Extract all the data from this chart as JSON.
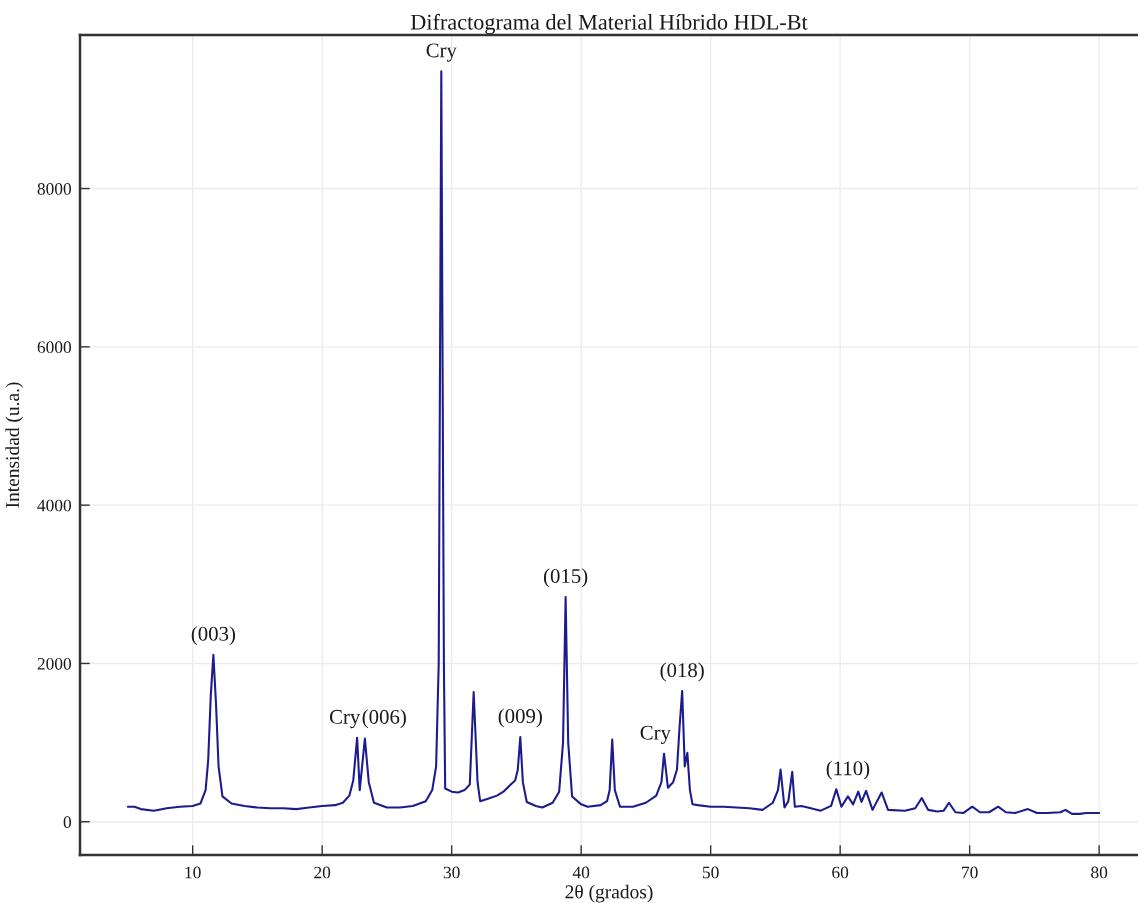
{
  "chart_data": {
    "type": "line",
    "title": "Difractograma del Material Híbrido HDL-Bt",
    "xlabel": "2θ (grados)",
    "ylabel": "Intensidad (u.a.)",
    "series": [
      {
        "color": "#1c1c8c",
        "x": [
          5.0,
          5.5,
          6.0,
          7.0,
          8.0,
          9.0,
          10.0,
          10.6,
          11.0,
          11.2,
          11.4,
          11.6,
          11.8,
          12.0,
          12.3,
          13.0,
          14.0,
          15.0,
          16.0,
          17.0,
          18.0,
          19.0,
          20.0,
          21.0,
          21.6,
          22.1,
          22.4,
          22.7,
          22.9,
          23.3,
          23.6,
          24.0,
          25.0,
          26.0,
          27.0,
          28.0,
          28.5,
          28.8,
          29.0,
          29.2,
          29.4,
          29.5,
          30.0,
          30.5,
          31.0,
          31.4,
          31.7,
          32.0,
          32.2,
          32.8,
          33.5,
          34.0,
          34.5,
          34.9,
          35.1,
          35.3,
          35.5,
          35.8,
          36.5,
          37.0,
          37.8,
          38.3,
          38.6,
          38.8,
          39.0,
          39.3,
          40.0,
          40.5,
          41.5,
          42.0,
          42.2,
          42.4,
          42.6,
          43.0,
          44.0,
          45.0,
          45.8,
          46.2,
          46.4,
          46.7,
          47.1,
          47.4,
          47.6,
          47.8,
          48.0,
          48.2,
          48.4,
          48.6,
          49.0,
          50.0,
          51.0,
          52.0,
          53.0,
          54.0,
          54.8,
          55.2,
          55.4,
          55.7,
          56.0,
          56.3,
          56.5,
          57.0,
          57.5,
          58.5,
          59.3,
          59.7,
          60.1,
          60.6,
          61.0,
          61.4,
          61.65,
          62.0,
          62.5,
          63.2,
          63.7,
          65.0,
          65.8,
          66.3,
          66.8,
          67.5,
          68.0,
          68.4,
          68.9,
          69.5,
          70.2,
          70.8,
          71.5,
          72.2,
          72.8,
          73.5,
          74.5,
          75.2,
          76.0,
          77.0,
          77.4,
          77.9,
          78.5,
          79.0,
          80.0
        ],
        "values": [
          190,
          190,
          160,
          140,
          170,
          190,
          200,
          230,
          400,
          780,
          1600,
          2110,
          1500,
          700,
          320,
          230,
          200,
          180,
          170,
          170,
          160,
          180,
          200,
          210,
          240,
          330,
          520,
          1060,
          400,
          1050,
          500,
          240,
          180,
          180,
          200,
          260,
          400,
          700,
          2000,
          9480,
          2000,
          420,
          380,
          370,
          400,
          470,
          1640,
          500,
          260,
          290,
          330,
          380,
          460,
          520,
          650,
          1070,
          500,
          250,
          200,
          180,
          240,
          380,
          1000,
          2840,
          1000,
          320,
          220,
          190,
          210,
          260,
          400,
          1040,
          400,
          190,
          190,
          240,
          330,
          500,
          860,
          430,
          500,
          660,
          1200,
          1650,
          700,
          870,
          400,
          220,
          210,
          190,
          190,
          180,
          170,
          150,
          240,
          400,
          660,
          180,
          260,
          630,
          190,
          200,
          180,
          140,
          200,
          410,
          190,
          320,
          220,
          380,
          250,
          390,
          150,
          370,
          150,
          140,
          170,
          300,
          150,
          130,
          140,
          240,
          120,
          110,
          190,
          120,
          120,
          190,
          120,
          110,
          160,
          110,
          110,
          120,
          150,
          100,
          100,
          110,
          110
        ]
      }
    ],
    "xlim": [
      1.3,
      83.0
    ],
    "ylim": [
      -420,
      9940
    ],
    "xticks": [
      10,
      20,
      30,
      40,
      50,
      60,
      70,
      80
    ],
    "yticks": [
      0,
      2000,
      4000,
      6000,
      8000
    ],
    "grid": true,
    "annotations": [
      {
        "text": "(003)",
        "x": 11.6,
        "y": 2110
      },
      {
        "text": "Cry",
        "x": 22.7,
        "y": 1060
      },
      {
        "text": "(006)",
        "x": 23.3,
        "y": 1050
      },
      {
        "text": "Cry",
        "x": 29.2,
        "y": 9480
      },
      {
        "text": "(009)",
        "x": 35.3,
        "y": 1070
      },
      {
        "text": "(015)",
        "x": 38.8,
        "y": 2840
      },
      {
        "text": "Cry",
        "x": 46.4,
        "y": 860
      },
      {
        "text": "(018)",
        "x": 47.8,
        "y": 1650
      },
      {
        "text": "(110)",
        "x": 60.6,
        "y": 320
      }
    ]
  }
}
